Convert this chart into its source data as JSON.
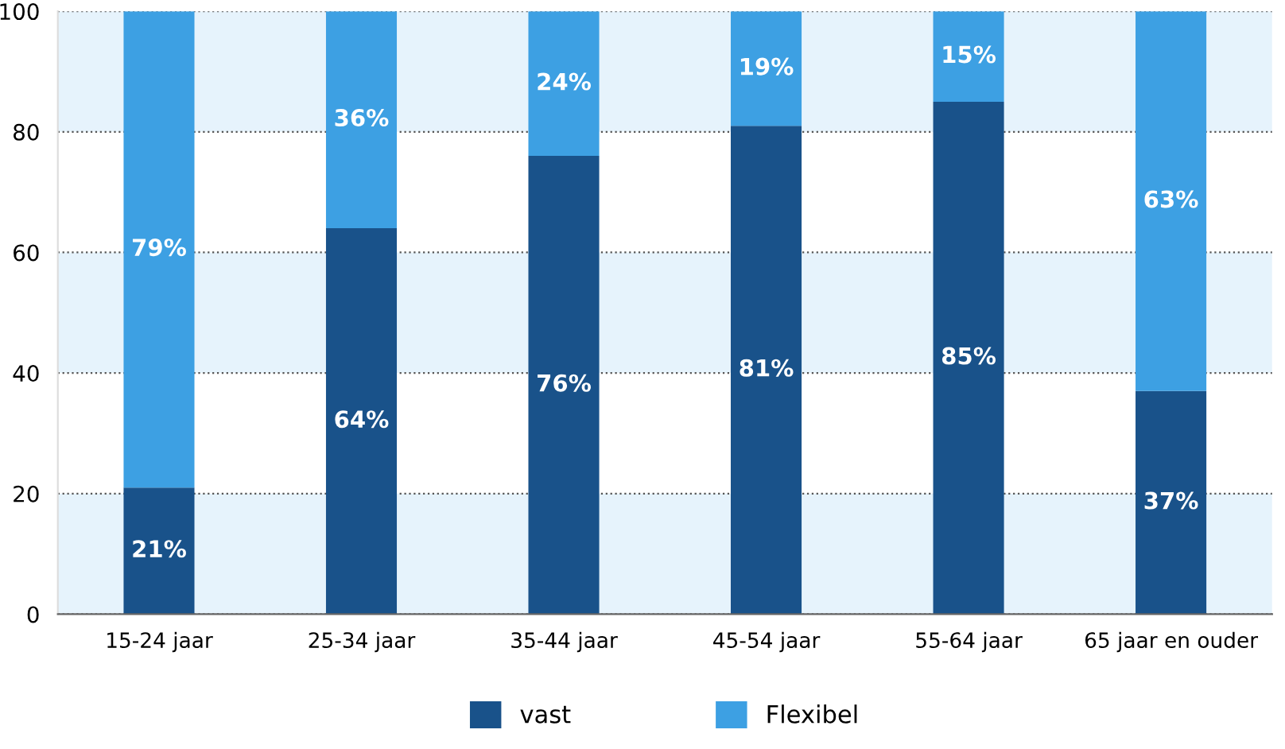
{
  "chart_data": {
    "type": "bar",
    "stacked": true,
    "categories": [
      "15-24 jaar",
      "25-34 jaar",
      "35-44 jaar",
      "45-54 jaar",
      "55-64 jaar",
      "65 jaar en ouder"
    ],
    "series": [
      {
        "name": "vast",
        "color": "#19528a",
        "values": [
          21,
          64,
          76,
          81,
          85,
          37
        ],
        "value_labels": [
          "21%",
          "64%",
          "76%",
          "81%",
          "85%",
          "37%"
        ]
      },
      {
        "name": "Flexibel",
        "color": "#3da0e3",
        "values": [
          79,
          36,
          24,
          19,
          15,
          63
        ],
        "value_labels": [
          "79%",
          "36%",
          "24%",
          "19%",
          "15%",
          "63%"
        ]
      }
    ],
    "ylim": [
      0,
      100
    ],
    "yticks": [
      0,
      20,
      40,
      60,
      80,
      100
    ],
    "grid": "y",
    "line_style": "dotted",
    "legend": "bottom",
    "bands": [
      {
        "axis": "y",
        "from": 0,
        "to": 20,
        "color": "#e6f3fc"
      },
      {
        "axis": "y",
        "from": 40,
        "to": 60,
        "color": "#e6f3fc"
      },
      {
        "axis": "y",
        "from": 80,
        "to": 100,
        "color": "#e6f3fc"
      }
    ]
  }
}
